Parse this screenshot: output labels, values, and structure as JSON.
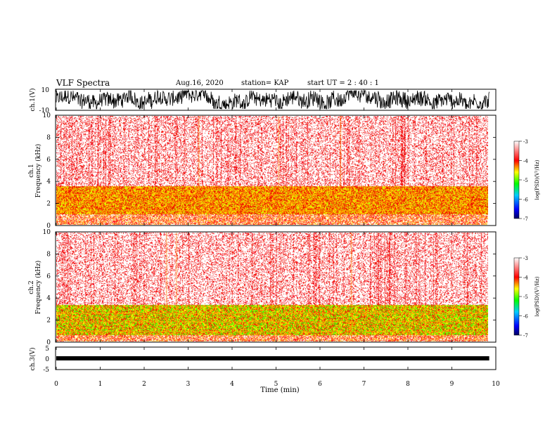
{
  "header": {
    "title": "VLF Spectra",
    "date": "Aug.16, 2020",
    "station": "station= KAP",
    "start": "start UT =  2 : 40 : 1"
  },
  "chart_data": [
    {
      "type": "line",
      "title": "",
      "ylabel": "ch.1(V)",
      "xlim": [
        0,
        10
      ],
      "ylim": [
        -10,
        10
      ],
      "yticks": [
        "10",
        "-10"
      ],
      "data_end_min": 9.85,
      "description_values": {
        "min": -10,
        "max": 10
      }
    },
    {
      "type": "heatmap",
      "ylabel": "ch.1 Frequency (kHz)",
      "xlim": [
        0,
        10
      ],
      "ylim": [
        0,
        10
      ],
      "yticks": [
        "0",
        "2",
        "4",
        "6",
        "8",
        "10"
      ],
      "band_khz": [
        1.0,
        3.2
      ],
      "colorbar": {
        "label": "log(PSD)(V²/Hz)",
        "range": [
          -7,
          -3
        ],
        "ticks": [
          "-3",
          "-4",
          "-5",
          "-6",
          "-7"
        ]
      }
    },
    {
      "type": "heatmap",
      "ylabel": "ch.2 Frequency (kHz)",
      "xlim": [
        0,
        10
      ],
      "ylim": [
        0,
        10
      ],
      "yticks": [
        "0",
        "2",
        "4",
        "6",
        "8",
        "10"
      ],
      "band_khz": [
        0.6,
        3.0
      ],
      "colorbar": {
        "label": "log(PSD)(V²/Hz)",
        "range": [
          -7,
          -3
        ],
        "ticks": [
          "-3",
          "-4",
          "-5",
          "-6",
          "-7"
        ]
      }
    },
    {
      "type": "line",
      "ylabel": "ch.3(V)",
      "xlim": [
        0,
        10
      ],
      "ylim": [
        -5,
        5
      ],
      "yticks": [
        "5",
        "0",
        "-5"
      ],
      "baseline_v": 0,
      "data_end_min": 9.85,
      "xlabel": "Time (min)",
      "xticks": [
        "0",
        "1",
        "2",
        "3",
        "4",
        "5",
        "6",
        "7",
        "8",
        "9",
        "10"
      ]
    }
  ]
}
